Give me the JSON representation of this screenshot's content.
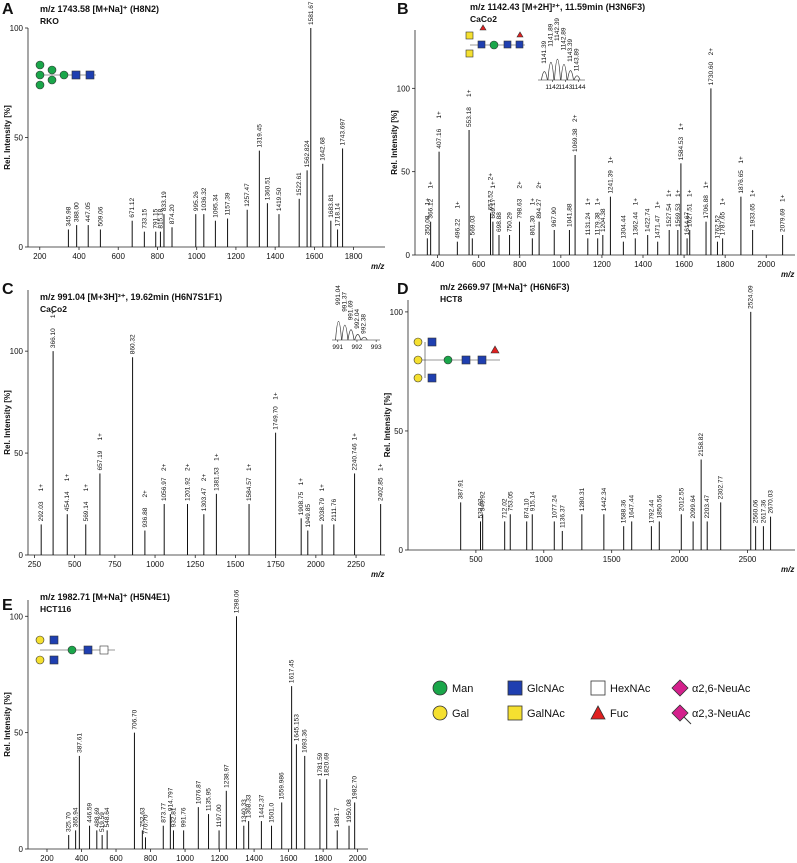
{
  "chart_data": [
    {
      "type": "spectrum",
      "panel": "A",
      "title": "m/z 1743.58 [M+Na]⁺ (H8N2)",
      "subtitle": "RKO",
      "xlabel": "m/z",
      "ylabel": "Rel. Intensity [%]",
      "color": "#111111",
      "xlim": [
        140,
        1960
      ],
      "xticks": [
        200,
        400,
        600,
        800,
        1000,
        1200,
        1400,
        1600,
        1800
      ],
      "ylim": [
        0,
        100
      ],
      "yticks": [
        0,
        50,
        100
      ],
      "x": [
        345.98,
        388,
        447.05,
        509.06,
        671.12,
        733.15,
        791.15,
        815.18,
        833.19,
        874.2,
        995.26,
        1036.32,
        1095.34,
        1157.39,
        1257.47,
        1319.45,
        1360.51,
        1419.5,
        1522.61,
        1562.824,
        1581.67,
        1642.68,
        1683.81,
        1718.14,
        1743.697
      ],
      "values": [
        8,
        10,
        10,
        8,
        12,
        7,
        7,
        7,
        15,
        9,
        15,
        15,
        12,
        13,
        17,
        44,
        20,
        15,
        22,
        35,
        100,
        38,
        12,
        8,
        45
      ],
      "labels": [
        "345.98",
        "388.00",
        "447.05",
        "509.06",
        "671.12",
        "733.15",
        "791.15",
        "815.18",
        "833.19",
        "874.20",
        "995.26",
        "1036.32",
        "1095.34",
        "1157.39",
        "1257.47",
        "1319.45",
        "1360.51",
        "1419.50",
        "1522.61",
        "1562.824",
        "1581.67",
        "1642.68",
        "1683.81",
        "1718.14",
        "1743.697"
      ],
      "charges": [
        null,
        null,
        null,
        null,
        null,
        null,
        null,
        null,
        null,
        null,
        null,
        null,
        null,
        null,
        null,
        null,
        null,
        null,
        null,
        null,
        null,
        null,
        null,
        null,
        null
      ]
    },
    {
      "type": "spectrum",
      "panel": "B",
      "title": "m/z 1142.43 [M+2H]²⁺, 11.59min (H3N6F3)",
      "subtitle": "CaCo2",
      "xlabel": "m/z",
      "ylabel": "Rel. Intensity [%]",
      "color": "#111111",
      "xlim": [
        290,
        2140
      ],
      "xticks": [
        400,
        600,
        800,
        1000,
        1200,
        1400,
        1600,
        1800,
        2000
      ],
      "ylim": [
        0,
        135
      ],
      "yticks": [
        0,
        50,
        100
      ],
      "x": [
        350.08,
        366.12,
        407.16,
        496.22,
        553.18,
        569.03,
        657.52,
        669.17,
        698.88,
        750.29,
        798.63,
        861.3,
        894.27,
        967.9,
        1041.88,
        1069.38,
        1131.24,
        1179.38,
        1204.38,
        1241.39,
        1304.44,
        1362.44,
        1422.74,
        1471.47,
        1527.54,
        1569.53,
        1584.53,
        1614.67,
        1627.51,
        1706.88,
        1730.6,
        1762.52,
        1787.65,
        1876.65,
        1933.65,
        2079.69
      ],
      "values": [
        10,
        20,
        62,
        8,
        75,
        10,
        25,
        20,
        12,
        12,
        20,
        10,
        20,
        15,
        15,
        60,
        10,
        10,
        12,
        35,
        8,
        10,
        12,
        8,
        15,
        15,
        55,
        10,
        15,
        20,
        100,
        8,
        10,
        35,
        15,
        12
      ],
      "labels": [
        "350.08",
        "366.12",
        "407.16",
        "496.22",
        "553.18",
        "569.03",
        "657.52",
        "669.17",
        "698.88",
        "750.29",
        "798.63",
        "861.30",
        "894.27",
        "967.90",
        "1041.88",
        "1069.38",
        "1131.24",
        "1179.38",
        "1204.38",
        "1241.39",
        "1304.44",
        "1362.44",
        "1422.74",
        "1471.47",
        "1527.54",
        "1569.53",
        "1584.53",
        "1614.67",
        "1627.51",
        "1706.88",
        "1730.60",
        "1762.52",
        "1787.65",
        "1876.65",
        "1933.65",
        "2079.69"
      ],
      "charges": [
        "1+",
        "1+",
        "1+",
        "1+",
        "1+",
        null,
        "2+",
        "1+",
        null,
        null,
        "2+",
        "1+",
        "2+",
        null,
        null,
        "2+",
        "1+",
        "1+",
        null,
        "1+",
        null,
        "1+",
        null,
        "1+",
        "1+",
        "1+",
        "1+",
        null,
        "1+",
        "1+",
        "2+",
        null,
        "1+",
        "1+",
        "1+",
        "1+"
      ],
      "inset": {
        "x": [
          1141.39,
          1141.89,
          1142.39,
          1142.89,
          1143.39,
          1143.89
        ],
        "values": [
          40,
          85,
          100,
          75,
          45,
          20
        ],
        "labels": [
          "1141.39",
          "1141.89",
          "1142.39",
          "1142.89",
          "1143.39",
          "1143.89"
        ],
        "xlim": [
          1140.9,
          1144.5
        ],
        "xticks": [
          1142,
          1143,
          1144
        ]
      }
    },
    {
      "type": "spectrum",
      "panel": "C",
      "title": "m/z 991.04 [M+3H]³⁺, 19.62min (H6N7S1F1)",
      "subtitle": "CaCo2",
      "xlabel": "m/z",
      "ylabel": "Rel. Intensity [%]",
      "color": "#111111",
      "xlim": [
        210,
        2430
      ],
      "xticks": [
        250,
        500,
        750,
        1000,
        1250,
        1500,
        1750,
        2000,
        2250
      ],
      "ylim": [
        0,
        130
      ],
      "yticks": [
        0,
        50,
        100
      ],
      "x": [
        292.03,
        366.1,
        454.14,
        569.14,
        657.19,
        860.32,
        936.88,
        1056.97,
        1201.92,
        1303.47,
        1381.53,
        1584.57,
        1749.7,
        1908.75,
        1949.85,
        2038.79,
        2111.76,
        2240.746,
        2402.85
      ],
      "values": [
        15,
        100,
        20,
        15,
        40,
        97,
        12,
        25,
        25,
        20,
        30,
        25,
        60,
        18,
        12,
        15,
        15,
        40,
        25
      ],
      "labels": [
        "292.03",
        "366.10",
        "454.14",
        "569.14",
        "657.19",
        "860.32",
        "936.88",
        "1056.97",
        "1201.92",
        "1303.47",
        "1381.53",
        "1584.57",
        "1749.70",
        "1908.75",
        "1949.85",
        "2038.79",
        "2111.76",
        "2240.746",
        "2402.85"
      ],
      "charges": [
        "1+",
        "1+",
        "1+",
        "1+",
        "1+",
        null,
        "2+",
        "2+",
        "2+",
        "2+",
        "1+",
        "1+",
        "1+",
        "1+",
        null,
        "1+",
        null,
        "1+",
        "1+"
      ],
      "inset": {
        "x": [
          991.04,
          991.37,
          991.69,
          992.04,
          992.38
        ],
        "values": [
          100,
          80,
          55,
          30,
          15
        ],
        "labels": [
          "991.04",
          "991.37",
          "991.69",
          "992.04",
          "992.38"
        ],
        "xlim": [
          990.7,
          993.2
        ],
        "xticks": [
          991,
          992,
          993
        ]
      }
    },
    {
      "type": "spectrum",
      "panel": "D",
      "title": "m/z 2669.97 [M+Na]⁺ (H6N6F3)",
      "subtitle": "HCT8",
      "xlabel": "m/z",
      "ylabel": "Rel. Intensity [%]",
      "color": "#111111",
      "xlim": [
        0,
        2850
      ],
      "xticks": [
        500,
        1000,
        1500,
        2000,
        2500
      ],
      "ylim": [
        0,
        105
      ],
      "yticks": [
        0,
        50,
        100
      ],
      "x": [
        387.91,
        533.93,
        549.92,
        712.02,
        753.05,
        874.1,
        915.14,
        1077.24,
        1136.37,
        1280.31,
        1442.34,
        1588.36,
        1647.44,
        1792.44,
        1850.56,
        2012.55,
        2099.64,
        2158.82,
        2203.47,
        2302.77,
        2524.09,
        2560.06,
        2617.36,
        2670.03
      ],
      "values": [
        20,
        12,
        15,
        12,
        15,
        12,
        15,
        12,
        8,
        15,
        15,
        10,
        12,
        10,
        12,
        15,
        12,
        38,
        12,
        20,
        100,
        10,
        10,
        14
      ],
      "labels": [
        "387.91",
        "533.93",
        "549.92",
        "712.02",
        "753.05",
        "874.10",
        "915.14",
        "1077.24",
        "1136.37",
        "1280.31",
        "1442.34",
        "1588.36",
        "1647.44",
        "1792.44",
        "1850.56",
        "2012.55",
        "2099.64",
        "2158.82",
        "2203.47",
        "2302.77",
        "2524.09",
        "2560.06",
        "2617.36",
        "2670.03"
      ],
      "charges": [
        null,
        null,
        null,
        null,
        null,
        null,
        null,
        null,
        null,
        null,
        null,
        null,
        null,
        null,
        null,
        null,
        null,
        null,
        null,
        null,
        null,
        null,
        null,
        null
      ]
    },
    {
      "type": "spectrum",
      "panel": "E",
      "title": "m/z 1982.71 [M+Na]⁺ (H5N4E1)",
      "subtitle": "HCT116",
      "xlabel": "m/z",
      "ylabel": "Rel. Intensity [%]",
      "color": "#111111",
      "xlim": [
        90,
        2060
      ],
      "xticks": [
        200,
        400,
        600,
        800,
        1000,
        1200,
        1400,
        1600,
        1800,
        2000
      ],
      "ylim": [
        0,
        107
      ],
      "yticks": [
        0,
        50,
        100
      ],
      "x": [
        325.7,
        365.94,
        387.61,
        446.59,
        488.69,
        519.59,
        548.64,
        706.7,
        752.63,
        770.7,
        873.77,
        914.797,
        932.81,
        991.76,
        1076.87,
        1135.95,
        1197,
        1238.97,
        1298.06,
        1340.33,
        1368.33,
        1442.37,
        1501,
        1559.986,
        1617.45,
        1645.153,
        1693.36,
        1781.59,
        1820.69,
        1881.7,
        1950.08,
        1982.7
      ],
      "values": [
        6,
        8,
        40,
        10,
        8,
        6,
        8,
        50,
        8,
        5,
        10,
        15,
        8,
        8,
        18,
        15,
        8,
        25,
        100,
        10,
        12,
        12,
        10,
        20,
        70,
        45,
        40,
        30,
        30,
        8,
        10,
        20
      ],
      "labels": [
        "325.70",
        "365.94",
        "387.61",
        "446.59",
        "488.69",
        "519.59",
        "548.64",
        "706.70",
        "752.63",
        "770.70",
        "873.77",
        "914.797",
        "932.81",
        "991.76",
        "1076.87",
        "1135.95",
        "1197.00",
        "1238.97",
        "1298.06",
        "1340.33",
        "1368.33",
        "1442.37",
        "1501.0",
        "1559.986",
        "1617.45",
        "1645.153",
        "1693.36",
        "1781.59",
        "1820.69",
        "1881.7",
        "1950.08",
        "1982.70"
      ],
      "charges": [
        null,
        null,
        null,
        null,
        null,
        null,
        null,
        null,
        null,
        null,
        null,
        null,
        null,
        null,
        null,
        null,
        null,
        null,
        null,
        null,
        null,
        null,
        null,
        null,
        null,
        null,
        null,
        null,
        null,
        null,
        null,
        null
      ]
    }
  ],
  "legend": [
    {
      "name": "Man",
      "shape": "circle",
      "color": "#1aa64a"
    },
    {
      "name": "GlcNAc",
      "shape": "square",
      "color": "#1f3fb0"
    },
    {
      "name": "HexNAc",
      "shape": "square",
      "color": "#ffffff"
    },
    {
      "name": "α2,6-NeuAc",
      "shape": "diamond",
      "color": "#d4208c"
    },
    {
      "name": "Gal",
      "shape": "circle",
      "color": "#f5e030"
    },
    {
      "name": "GalNAc",
      "shape": "square",
      "color": "#f5e030"
    },
    {
      "name": "Fuc",
      "shape": "triangle",
      "color": "#e02020"
    },
    {
      "name": "α2,3-NeuAc",
      "shape": "diamond-tail",
      "color": "#d4208c"
    }
  ]
}
